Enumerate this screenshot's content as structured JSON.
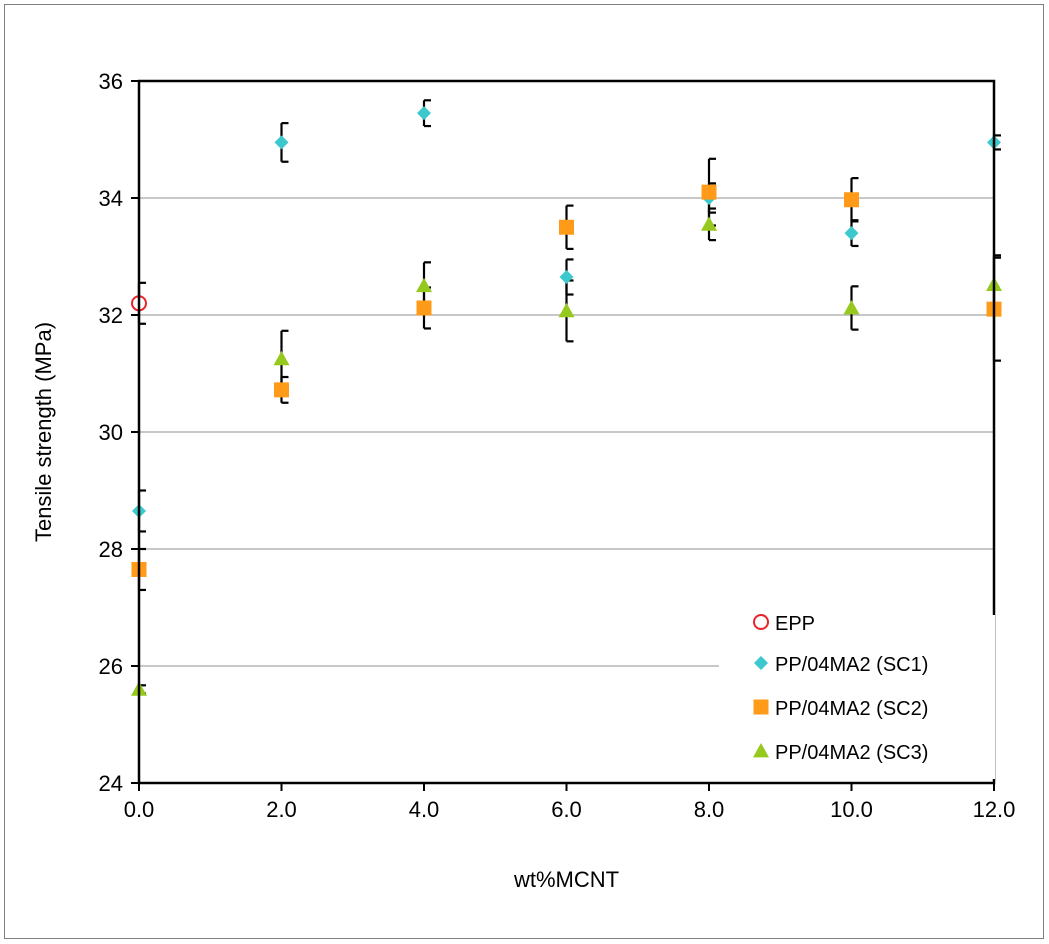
{
  "chart_data": {
    "type": "scatter",
    "xlabel": "wt%MCNT",
    "ylabel": "Tensile strength (MPa)",
    "xlim": [
      0,
      12
    ],
    "ylim": [
      24,
      36
    ],
    "x_ticks": [
      "0.0",
      "2.0",
      "4.0",
      "6.0",
      "8.0",
      "10.0",
      "12.0"
    ],
    "y_ticks": [
      "24",
      "26",
      "28",
      "30",
      "32",
      "34",
      "36"
    ],
    "grid": "horizontal",
    "legend_position": "bottom-right",
    "series": [
      {
        "name": "EPP",
        "marker": "open-circle",
        "color": "#e8232a",
        "points": [
          {
            "x": 0,
            "y": 32.2,
            "err": 0.35
          }
        ]
      },
      {
        "name": "PP/04MA2 (SC1)",
        "marker": "diamond",
        "color": "#3cc8cc",
        "points": [
          {
            "x": 0,
            "y": 28.65,
            "err": 0.35
          },
          {
            "x": 2,
            "y": 34.95,
            "err": 0.33
          },
          {
            "x": 4,
            "y": 35.45,
            "err": 0.22
          },
          {
            "x": 6,
            "y": 32.65,
            "err": 0.3
          },
          {
            "x": 8,
            "y": 34.0,
            "err": 0.25
          },
          {
            "x": 10,
            "y": 33.4,
            "err": 0.22
          },
          {
            "x": 12,
            "y": 34.95,
            "err": 0.12
          }
        ]
      },
      {
        "name": "PP/04MA2 (SC2)",
        "marker": "square",
        "color": "#ff9b19",
        "points": [
          {
            "x": 0,
            "y": 27.65,
            "err": 0.35
          },
          {
            "x": 2,
            "y": 30.72,
            "err": 0.22
          },
          {
            "x": 4,
            "y": 32.12,
            "err": 0.35
          },
          {
            "x": 6,
            "y": 33.5,
            "err": 0.37
          },
          {
            "x": 8,
            "y": 34.1,
            "err": 0.57
          },
          {
            "x": 10,
            "y": 33.97,
            "err": 0.37
          },
          {
            "x": 12,
            "y": 32.1,
            "err": 0.88
          }
        ]
      },
      {
        "name": "PP/04MA2 (SC3)",
        "marker": "triangle",
        "color": "#96c81e",
        "points": [
          {
            "x": 0,
            "y": 25.6,
            "err": 0.07
          },
          {
            "x": 2,
            "y": 31.25,
            "err": 0.48
          },
          {
            "x": 4,
            "y": 32.5,
            "err": 0.4
          },
          {
            "x": 6,
            "y": 32.07,
            "err": 0.52
          },
          {
            "x": 8,
            "y": 33.55,
            "err": 0.27
          },
          {
            "x": 10,
            "y": 32.12,
            "err": 0.37
          },
          {
            "x": 12,
            "y": 32.52,
            "err": 0.5
          }
        ]
      }
    ]
  }
}
